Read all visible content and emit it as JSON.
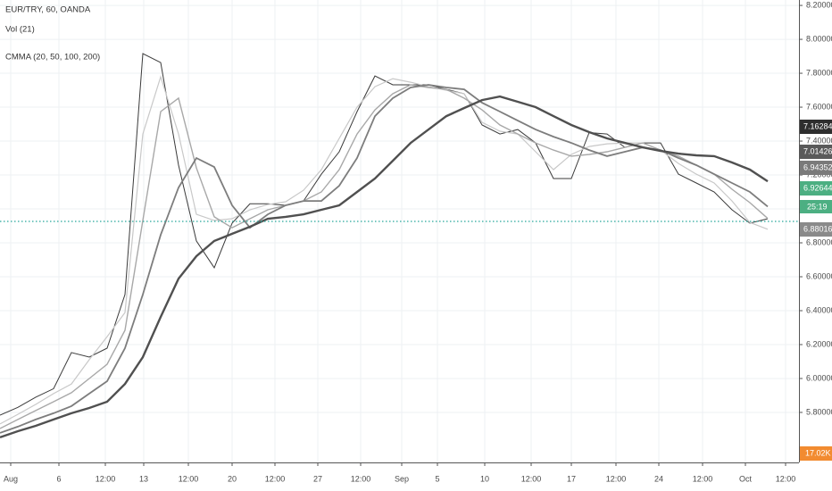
{
  "chart_data": {
    "type": "line",
    "title": "EUR/TRY, 60, OANDA",
    "indicators": [
      "Vol (21)",
      "CMMA (20, 50, 100, 200)"
    ],
    "x": [
      0,
      2,
      4,
      6,
      8,
      10,
      12,
      14,
      16,
      18,
      20,
      22,
      24,
      26,
      28,
      30,
      32,
      34,
      36,
      38,
      40,
      42,
      44,
      46,
      48,
      50,
      52,
      54,
      56,
      58,
      60,
      62,
      64,
      66,
      68,
      70,
      72,
      74,
      76,
      78,
      80,
      82,
      84,
      86
    ],
    "series": [
      {
        "color": "#3a3a3a",
        "width": 1,
        "values": [
          5.784,
          5.83,
          5.89,
          5.94,
          6.153,
          6.126,
          6.179,
          6.495,
          7.916,
          7.863,
          7.258,
          6.811,
          6.653,
          6.916,
          7.03,
          7.03,
          7.021,
          7.047,
          7.205,
          7.337,
          7.574,
          7.784,
          7.732,
          7.732,
          7.732,
          7.705,
          7.679,
          7.495,
          7.442,
          7.468,
          7.389,
          7.179,
          7.179,
          7.45,
          7.442,
          7.363,
          7.389,
          7.389,
          7.205,
          7.153,
          7.1,
          6.995,
          6.916,
          6.942
        ]
      },
      {
        "color": "#c8c8c8",
        "width": 1.2,
        "values": [
          5.732,
          5.789,
          5.847,
          5.911,
          5.968,
          6.111,
          6.247,
          6.389,
          7.442,
          7.779,
          7.442,
          6.968,
          6.932,
          6.942,
          6.995,
          7.026,
          7.042,
          7.11,
          7.232,
          7.416,
          7.6,
          7.721,
          7.768,
          7.747,
          7.721,
          7.7,
          7.679,
          7.511,
          7.458,
          7.442,
          7.337,
          7.232,
          7.321,
          7.368,
          7.384,
          7.389,
          7.389,
          7.347,
          7.268,
          7.205,
          7.153,
          7.047,
          6.92,
          6.88
        ]
      },
      {
        "color": "#a8a8a8",
        "width": 1.4,
        "values": [
          5.705,
          5.758,
          5.811,
          5.863,
          5.916,
          6.0,
          6.084,
          6.284,
          6.932,
          7.574,
          7.653,
          7.242,
          6.953,
          6.889,
          6.942,
          6.995,
          7.021,
          7.047,
          7.1,
          7.232,
          7.442,
          7.584,
          7.679,
          7.732,
          7.716,
          7.705,
          7.653,
          7.584,
          7.495,
          7.442,
          7.389,
          7.347,
          7.311,
          7.321,
          7.337,
          7.363,
          7.389,
          7.347,
          7.311,
          7.258,
          7.205,
          7.116,
          7.037,
          6.944
        ]
      },
      {
        "color": "#7d7d7d",
        "width": 1.8,
        "values": [
          5.679,
          5.716,
          5.758,
          5.795,
          5.837,
          5.911,
          5.984,
          6.179,
          6.495,
          6.847,
          7.126,
          7.3,
          7.247,
          7.021,
          6.889,
          6.968,
          7.021,
          7.047,
          7.047,
          7.137,
          7.3,
          7.547,
          7.653,
          7.716,
          7.732,
          7.716,
          7.705,
          7.626,
          7.574,
          7.521,
          7.468,
          7.426,
          7.389,
          7.347,
          7.311,
          7.337,
          7.363,
          7.347,
          7.3,
          7.258,
          7.205,
          7.153,
          7.1,
          7.014
        ]
      },
      {
        "color": "#505050",
        "width": 2.4,
        "values": [
          5.653,
          5.689,
          5.721,
          5.758,
          5.795,
          5.826,
          5.863,
          5.968,
          6.126,
          6.363,
          6.589,
          6.721,
          6.811,
          6.853,
          6.895,
          6.942,
          6.953,
          6.968,
          6.995,
          7.021,
          7.1,
          7.179,
          7.284,
          7.389,
          7.468,
          7.547,
          7.595,
          7.642,
          7.663,
          7.632,
          7.6,
          7.547,
          7.495,
          7.453,
          7.416,
          7.389,
          7.363,
          7.342,
          7.326,
          7.316,
          7.311,
          7.274,
          7.232,
          7.163
        ]
      }
    ],
    "xlim": [
      0,
      89.5
    ],
    "ylim": [
      5.505,
      8.232
    ],
    "xticks": [
      {
        "value": 1.2,
        "label": "Aug"
      },
      {
        "value": 6.6,
        "label": "6"
      },
      {
        "value": 11.8,
        "label": "12:00"
      },
      {
        "value": 16.1,
        "label": "13"
      },
      {
        "value": 21.1,
        "label": "12:00"
      },
      {
        "value": 26,
        "label": "20"
      },
      {
        "value": 30.8,
        "label": "12:00"
      },
      {
        "value": 35.6,
        "label": "27"
      },
      {
        "value": 40.4,
        "label": "12:00"
      },
      {
        "value": 45,
        "label": "Sep"
      },
      {
        "value": 49,
        "label": "5"
      },
      {
        "value": 54.3,
        "label": "10"
      },
      {
        "value": 59.5,
        "label": "12:00"
      },
      {
        "value": 64,
        "label": "17"
      },
      {
        "value": 69,
        "label": "12:00"
      },
      {
        "value": 73.8,
        "label": "24"
      },
      {
        "value": 78.7,
        "label": "12:00"
      },
      {
        "value": 83.5,
        "label": "Oct"
      },
      {
        "value": 88,
        "label": "12:00"
      }
    ],
    "yticks": [
      {
        "value": 5.8,
        "label": "5.80000"
      },
      {
        "value": 6.0,
        "label": "6.00000"
      },
      {
        "value": 6.2,
        "label": "6.20000"
      },
      {
        "value": 6.4,
        "label": "6.40000"
      },
      {
        "value": 6.6,
        "label": "6.60000"
      },
      {
        "value": 6.8,
        "label": "6.80000"
      },
      {
        "value": 7.0,
        "label": "7.00000"
      },
      {
        "value": 7.2,
        "label": "7.20000"
      },
      {
        "value": 7.4,
        "label": "7.40000"
      },
      {
        "value": 7.6,
        "label": "7.60000"
      },
      {
        "value": 7.8,
        "label": "7.80000"
      },
      {
        "value": 8.0,
        "label": "8.00000"
      },
      {
        "value": 8.2,
        "label": "8.20000"
      }
    ],
    "grid": true,
    "price_labels": [
      7.16284,
      7.01426,
      6.94352,
      6.92644,
      6.88016
    ],
    "price_label_colors": [
      "#2e2e2e",
      "#5a5a5a",
      "#7a7a7a",
      "#4caf82",
      "#8a8a8a"
    ],
    "current_price_color": "#26a69a",
    "countdown": "25:19",
    "volume_label": "17.02K",
    "volume_color": "#f28b30"
  }
}
